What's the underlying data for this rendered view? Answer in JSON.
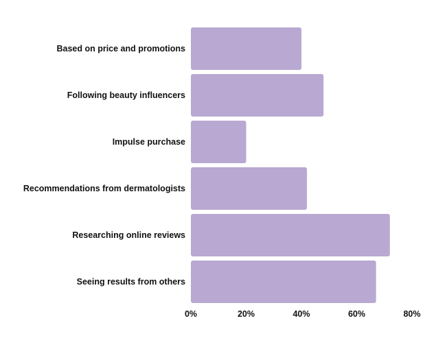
{
  "colors": {
    "bar": "#b9a8d1",
    "text": "#111111",
    "background": "#ffffff"
  },
  "chart_data": {
    "type": "bar",
    "orientation": "horizontal",
    "categories": [
      "Based on price and promotions",
      "Following beauty influencers",
      "Impulse purchase",
      "Recommendations from dermatologists",
      "Researching online reviews",
      "Seeing results from others"
    ],
    "values": [
      40,
      48,
      20,
      42,
      72,
      67
    ],
    "value_unit": "%",
    "xlim": [
      0,
      80
    ],
    "x_ticks": [
      0,
      20,
      40,
      60,
      80
    ],
    "x_tick_labels": [
      "0%",
      "20%",
      "40%",
      "60%",
      "80%"
    ],
    "grid": false,
    "legend": "none",
    "title": "",
    "xlabel": "",
    "ylabel": ""
  }
}
